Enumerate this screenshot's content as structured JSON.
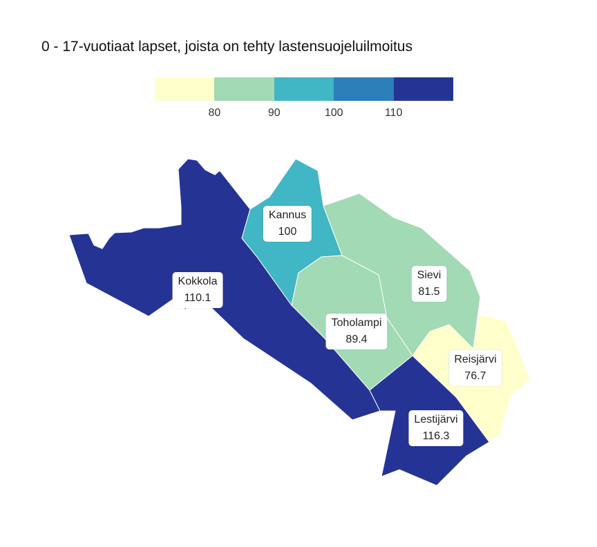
{
  "title": "0 - 17-vuotiaat lapset, joista on tehty lastensuojeluilmoitus",
  "legend": {
    "colors": [
      "#ffffcc",
      "#a1dab4",
      "#41b6c4",
      "#2c7fb8",
      "#253494"
    ],
    "ticks": [
      "80",
      "90",
      "100",
      "110"
    ]
  },
  "regions": [
    {
      "id": "kokkola",
      "name": "Kokkola",
      "value": "110.1",
      "color": "#253494"
    },
    {
      "id": "kannus",
      "name": "Kannus",
      "value": "100",
      "color": "#41b6c4"
    },
    {
      "id": "sievi",
      "name": "Sievi",
      "value": "81.5",
      "color": "#a1dab4"
    },
    {
      "id": "toholampi",
      "name": "Toholampi",
      "value": "89.4",
      "color": "#a1dab4"
    },
    {
      "id": "reisjarvi",
      "name": "Reisjärvi",
      "value": "76.7",
      "color": "#ffffcc"
    },
    {
      "id": "lestijarvi",
      "name": "Lestijärvi",
      "value": "116.3",
      "color": "#253494"
    }
  ]
}
